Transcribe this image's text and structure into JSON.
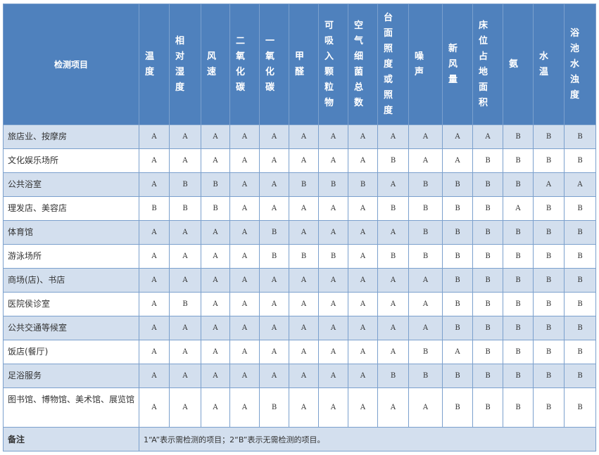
{
  "table": {
    "item_header": "检测项目",
    "columns": [
      "温度",
      "相对湿度",
      "风速",
      "二氧化碳",
      "一氧化碳",
      "甲醛",
      "可吸入颗粒物",
      "空气细菌总数",
      "台面照度或照度",
      "噪声",
      "新风量",
      "床位占地面积",
      "氨",
      "水温",
      "浴池水浊度"
    ],
    "rows": [
      {
        "name": "旅店业、按摩房",
        "values": [
          "A",
          "A",
          "A",
          "A",
          "A",
          "A",
          "A",
          "A",
          "A",
          "A",
          "A",
          "A",
          "B",
          "B",
          "B"
        ]
      },
      {
        "name": "文化娱乐场所",
        "values": [
          "A",
          "A",
          "A",
          "A",
          "A",
          "A",
          "A",
          "A",
          "B",
          "A",
          "A",
          "B",
          "B",
          "B",
          "B"
        ]
      },
      {
        "name": "公共浴室",
        "values": [
          "A",
          "B",
          "B",
          "A",
          "A",
          "B",
          "B",
          "B",
          "A",
          "B",
          "B",
          "B",
          "B",
          "A",
          "A"
        ]
      },
      {
        "name": "理发店、美容店",
        "values": [
          "B",
          "B",
          "B",
          "A",
          "A",
          "A",
          "A",
          "A",
          "B",
          "B",
          "B",
          "B",
          "A",
          "B",
          "B"
        ]
      },
      {
        "name": "体育馆",
        "values": [
          "A",
          "A",
          "A",
          "A",
          "B",
          "A",
          "A",
          "A",
          "A",
          "B",
          "B",
          "B",
          "B",
          "B",
          "B"
        ]
      },
      {
        "name": "游泳场所",
        "values": [
          "A",
          "A",
          "A",
          "A",
          "B",
          "B",
          "B",
          "A",
          "B",
          "B",
          "B",
          "B",
          "B",
          "B",
          "B"
        ]
      },
      {
        "name": "商场(店)、书店",
        "values": [
          "A",
          "A",
          "A",
          "A",
          "A",
          "A",
          "A",
          "A",
          "A",
          "A",
          "B",
          "B",
          "B",
          "B",
          "B"
        ]
      },
      {
        "name": "医院侯诊室",
        "values": [
          "A",
          "B",
          "A",
          "A",
          "A",
          "A",
          "A",
          "A",
          "A",
          "A",
          "B",
          "B",
          "B",
          "B",
          "B"
        ]
      },
      {
        "name": "公共交通等候室",
        "values": [
          "A",
          "A",
          "A",
          "A",
          "A",
          "A",
          "A",
          "A",
          "A",
          "A",
          "B",
          "B",
          "B",
          "B",
          "B"
        ]
      },
      {
        "name": "饭店(餐厅)",
        "values": [
          "A",
          "A",
          "A",
          "A",
          "A",
          "A",
          "A",
          "A",
          "A",
          "B",
          "A",
          "B",
          "B",
          "B",
          "B"
        ]
      },
      {
        "name": "足浴服务",
        "values": [
          "A",
          "A",
          "A",
          "A",
          "A",
          "A",
          "A",
          "A",
          "B",
          "B",
          "B",
          "B",
          "B",
          "B",
          "B"
        ]
      },
      {
        "name": "图书馆、博物馆、美术馆、展览馆",
        "values": [
          "A",
          "A",
          "A",
          "A",
          "B",
          "A",
          "A",
          "A",
          "A",
          "A",
          "B",
          "B",
          "B",
          "B",
          "B"
        ]
      }
    ],
    "note_label": "备注",
    "note_text": "1“A”表示需检测的项目；2“B”表示无需检测的项目。"
  },
  "colors": {
    "header_bg": "#4f81bd",
    "stripe_bg": "#d3dfee",
    "border": "#7ba0cd"
  }
}
